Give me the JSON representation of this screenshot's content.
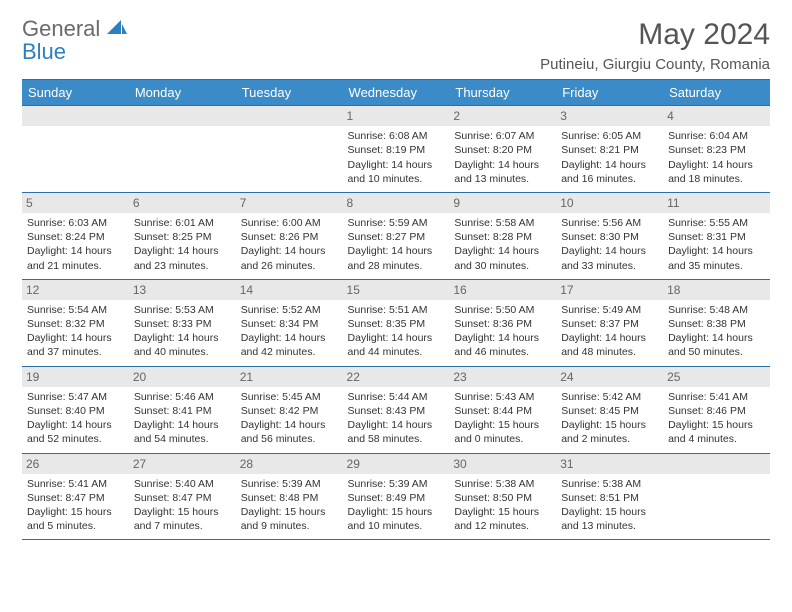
{
  "logo": {
    "word1": "General",
    "word2": "Blue"
  },
  "title": "May 2024",
  "location": "Putineiu, Giurgiu County, Romania",
  "dayHeaders": [
    "Sunday",
    "Monday",
    "Tuesday",
    "Wednesday",
    "Thursday",
    "Friday",
    "Saturday"
  ],
  "colors": {
    "headerBg": "#3b8bc8",
    "borderBlue": "#2c6fa3",
    "dayNumBg": "#e8e8e8",
    "logoGray": "#6a6a6a",
    "logoBlue": "#2d7fbf"
  },
  "weeks": [
    [
      null,
      null,
      null,
      {
        "n": "1",
        "sr": "6:08 AM",
        "ss": "8:19 PM",
        "dl1": "14 hours",
        "dl2": "and 10 minutes."
      },
      {
        "n": "2",
        "sr": "6:07 AM",
        "ss": "8:20 PM",
        "dl1": "14 hours",
        "dl2": "and 13 minutes."
      },
      {
        "n": "3",
        "sr": "6:05 AM",
        "ss": "8:21 PM",
        "dl1": "14 hours",
        "dl2": "and 16 minutes."
      },
      {
        "n": "4",
        "sr": "6:04 AM",
        "ss": "8:23 PM",
        "dl1": "14 hours",
        "dl2": "and 18 minutes."
      }
    ],
    [
      {
        "n": "5",
        "sr": "6:03 AM",
        "ss": "8:24 PM",
        "dl1": "14 hours",
        "dl2": "and 21 minutes."
      },
      {
        "n": "6",
        "sr": "6:01 AM",
        "ss": "8:25 PM",
        "dl1": "14 hours",
        "dl2": "and 23 minutes."
      },
      {
        "n": "7",
        "sr": "6:00 AM",
        "ss": "8:26 PM",
        "dl1": "14 hours",
        "dl2": "and 26 minutes."
      },
      {
        "n": "8",
        "sr": "5:59 AM",
        "ss": "8:27 PM",
        "dl1": "14 hours",
        "dl2": "and 28 minutes."
      },
      {
        "n": "9",
        "sr": "5:58 AM",
        "ss": "8:28 PM",
        "dl1": "14 hours",
        "dl2": "and 30 minutes."
      },
      {
        "n": "10",
        "sr": "5:56 AM",
        "ss": "8:30 PM",
        "dl1": "14 hours",
        "dl2": "and 33 minutes."
      },
      {
        "n": "11",
        "sr": "5:55 AM",
        "ss": "8:31 PM",
        "dl1": "14 hours",
        "dl2": "and 35 minutes."
      }
    ],
    [
      {
        "n": "12",
        "sr": "5:54 AM",
        "ss": "8:32 PM",
        "dl1": "14 hours",
        "dl2": "and 37 minutes."
      },
      {
        "n": "13",
        "sr": "5:53 AM",
        "ss": "8:33 PM",
        "dl1": "14 hours",
        "dl2": "and 40 minutes."
      },
      {
        "n": "14",
        "sr": "5:52 AM",
        "ss": "8:34 PM",
        "dl1": "14 hours",
        "dl2": "and 42 minutes."
      },
      {
        "n": "15",
        "sr": "5:51 AM",
        "ss": "8:35 PM",
        "dl1": "14 hours",
        "dl2": "and 44 minutes."
      },
      {
        "n": "16",
        "sr": "5:50 AM",
        "ss": "8:36 PM",
        "dl1": "14 hours",
        "dl2": "and 46 minutes."
      },
      {
        "n": "17",
        "sr": "5:49 AM",
        "ss": "8:37 PM",
        "dl1": "14 hours",
        "dl2": "and 48 minutes."
      },
      {
        "n": "18",
        "sr": "5:48 AM",
        "ss": "8:38 PM",
        "dl1": "14 hours",
        "dl2": "and 50 minutes."
      }
    ],
    [
      {
        "n": "19",
        "sr": "5:47 AM",
        "ss": "8:40 PM",
        "dl1": "14 hours",
        "dl2": "and 52 minutes."
      },
      {
        "n": "20",
        "sr": "5:46 AM",
        "ss": "8:41 PM",
        "dl1": "14 hours",
        "dl2": "and 54 minutes."
      },
      {
        "n": "21",
        "sr": "5:45 AM",
        "ss": "8:42 PM",
        "dl1": "14 hours",
        "dl2": "and 56 minutes."
      },
      {
        "n": "22",
        "sr": "5:44 AM",
        "ss": "8:43 PM",
        "dl1": "14 hours",
        "dl2": "and 58 minutes."
      },
      {
        "n": "23",
        "sr": "5:43 AM",
        "ss": "8:44 PM",
        "dl1": "15 hours",
        "dl2": "and 0 minutes."
      },
      {
        "n": "24",
        "sr": "5:42 AM",
        "ss": "8:45 PM",
        "dl1": "15 hours",
        "dl2": "and 2 minutes."
      },
      {
        "n": "25",
        "sr": "5:41 AM",
        "ss": "8:46 PM",
        "dl1": "15 hours",
        "dl2": "and 4 minutes."
      }
    ],
    [
      {
        "n": "26",
        "sr": "5:41 AM",
        "ss": "8:47 PM",
        "dl1": "15 hours",
        "dl2": "and 5 minutes."
      },
      {
        "n": "27",
        "sr": "5:40 AM",
        "ss": "8:47 PM",
        "dl1": "15 hours",
        "dl2": "and 7 minutes."
      },
      {
        "n": "28",
        "sr": "5:39 AM",
        "ss": "8:48 PM",
        "dl1": "15 hours",
        "dl2": "and 9 minutes."
      },
      {
        "n": "29",
        "sr": "5:39 AM",
        "ss": "8:49 PM",
        "dl1": "15 hours",
        "dl2": "and 10 minutes."
      },
      {
        "n": "30",
        "sr": "5:38 AM",
        "ss": "8:50 PM",
        "dl1": "15 hours",
        "dl2": "and 12 minutes."
      },
      {
        "n": "31",
        "sr": "5:38 AM",
        "ss": "8:51 PM",
        "dl1": "15 hours",
        "dl2": "and 13 minutes."
      },
      null
    ]
  ],
  "labels": {
    "sunrise": "Sunrise:",
    "sunset": "Sunset:",
    "daylight": "Daylight:"
  }
}
